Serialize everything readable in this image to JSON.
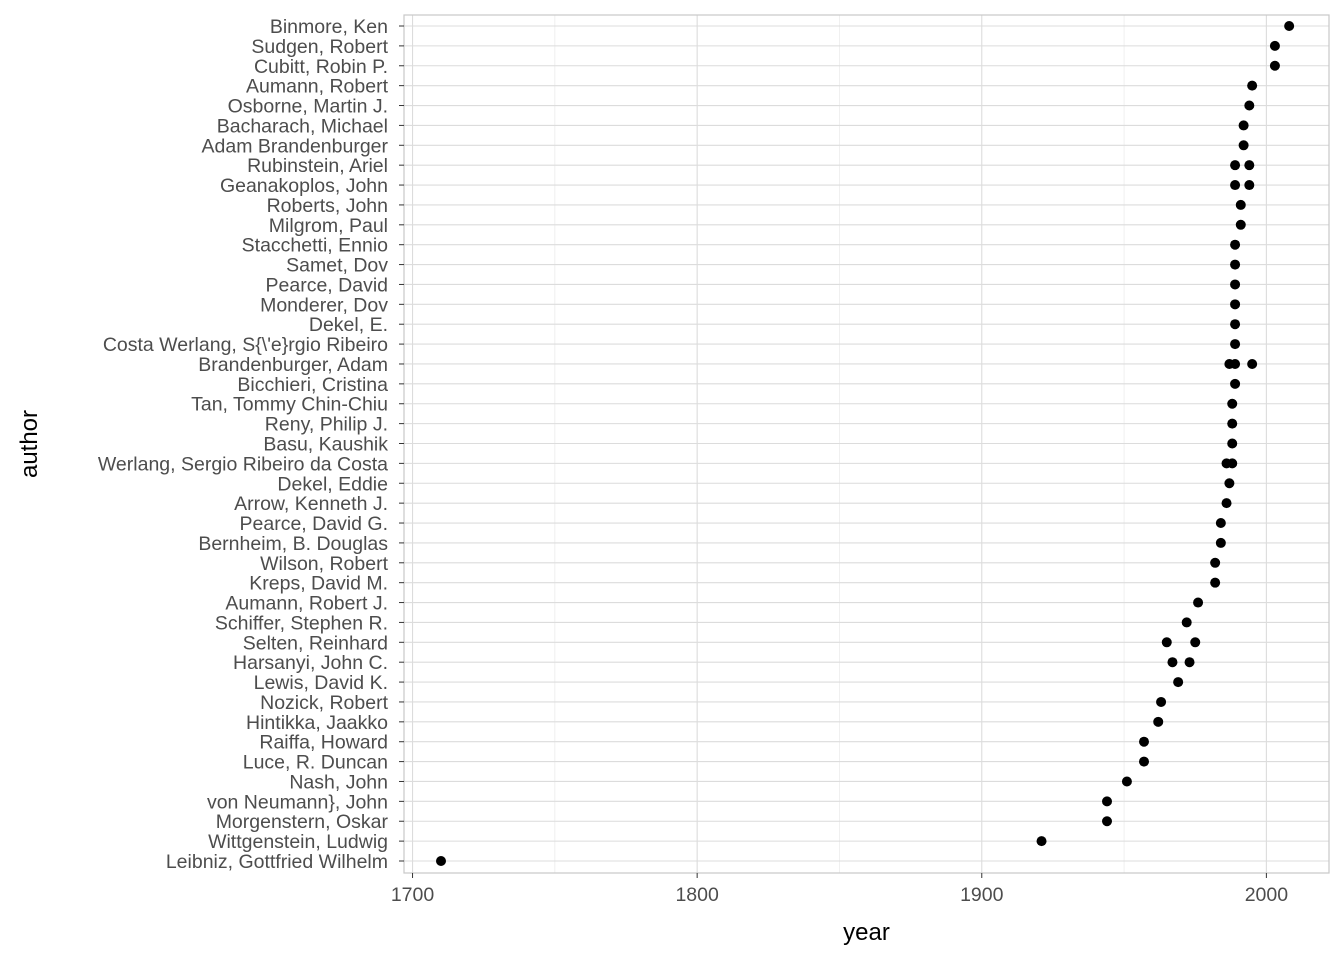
{
  "chart_data": {
    "type": "scatter",
    "title": "",
    "xlabel": "year",
    "ylabel": "author",
    "xlim": [
      1697,
      2022
    ],
    "x_ticks": [
      1700,
      1800,
      1900,
      2000
    ],
    "x_tick_labels": [
      "1700",
      "1800",
      "1900",
      "2000"
    ],
    "grid": true,
    "legend": "none",
    "point_color": "#000000",
    "grid_color": "#dcdcdc",
    "panel_border_color": "#c8c8c8",
    "categories": [
      "Leibniz, Gottfried Wilhelm",
      "Wittgenstein, Ludwig",
      "Morgenstern, Oskar",
      "von Neumann}, John",
      "Nash, John",
      "Luce, R. Duncan",
      "Raiffa, Howard",
      "Hintikka, Jaakko",
      "Nozick, Robert",
      "Lewis, David K.",
      "Harsanyi, John C.",
      "Selten, Reinhard",
      "Schiffer, Stephen R.",
      "Aumann, Robert J.",
      "Kreps, David M.",
      "Wilson, Robert",
      "Bernheim, B. Douglas",
      "Pearce, David G.",
      "Arrow, Kenneth J.",
      "Dekel, Eddie",
      "Werlang, Sergio Ribeiro da Costa",
      "Basu, Kaushik",
      "Reny, Philip J.",
      "Tan, Tommy Chin-Chiu",
      "Bicchieri, Cristina",
      "Brandenburger, Adam",
      "Costa Werlang, S{\\'e}rgio Ribeiro",
      "Dekel, E.",
      "Monderer, Dov",
      "Pearce, David",
      "Samet, Dov",
      "Stacchetti, Ennio",
      "Milgrom, Paul",
      "Roberts, John",
      "Geanakoplos, John",
      "Rubinstein, Ariel",
      "Adam Brandenburger",
      "Bacharach, Michael",
      "Osborne, Martin J.",
      "Aumann, Robert",
      "Cubitt, Robin P.",
      "Sudgen, Robert",
      "Binmore, Ken"
    ],
    "points": [
      {
        "author": "Leibniz, Gottfried Wilhelm",
        "year": 1710
      },
      {
        "author": "Wittgenstein, Ludwig",
        "year": 1921
      },
      {
        "author": "Morgenstern, Oskar",
        "year": 1944
      },
      {
        "author": "von Neumann}, John",
        "year": 1944
      },
      {
        "author": "Nash, John",
        "year": 1951
      },
      {
        "author": "Luce, R. Duncan",
        "year": 1957
      },
      {
        "author": "Raiffa, Howard",
        "year": 1957
      },
      {
        "author": "Hintikka, Jaakko",
        "year": 1962
      },
      {
        "author": "Nozick, Robert",
        "year": 1963
      },
      {
        "author": "Lewis, David K.",
        "year": 1969
      },
      {
        "author": "Harsanyi, John C.",
        "year": 1967
      },
      {
        "author": "Harsanyi, John C.",
        "year": 1973
      },
      {
        "author": "Selten, Reinhard",
        "year": 1965
      },
      {
        "author": "Selten, Reinhard",
        "year": 1975
      },
      {
        "author": "Schiffer, Stephen R.",
        "year": 1972
      },
      {
        "author": "Aumann, Robert J.",
        "year": 1976
      },
      {
        "author": "Kreps, David M.",
        "year": 1982
      },
      {
        "author": "Wilson, Robert",
        "year": 1982
      },
      {
        "author": "Bernheim, B. Douglas",
        "year": 1984
      },
      {
        "author": "Pearce, David G.",
        "year": 1984
      },
      {
        "author": "Arrow, Kenneth J.",
        "year": 1986
      },
      {
        "author": "Dekel, Eddie",
        "year": 1987
      },
      {
        "author": "Werlang, Sergio Ribeiro da Costa",
        "year": 1986
      },
      {
        "author": "Werlang, Sergio Ribeiro da Costa",
        "year": 1988
      },
      {
        "author": "Basu, Kaushik",
        "year": 1988
      },
      {
        "author": "Reny, Philip J.",
        "year": 1988
      },
      {
        "author": "Tan, Tommy Chin-Chiu",
        "year": 1988
      },
      {
        "author": "Bicchieri, Cristina",
        "year": 1989
      },
      {
        "author": "Brandenburger, Adam",
        "year": 1987
      },
      {
        "author": "Brandenburger, Adam",
        "year": 1989
      },
      {
        "author": "Brandenburger, Adam",
        "year": 1995
      },
      {
        "author": "Costa Werlang, S{\\'e}rgio Ribeiro",
        "year": 1989
      },
      {
        "author": "Dekel, E.",
        "year": 1989
      },
      {
        "author": "Monderer, Dov",
        "year": 1989
      },
      {
        "author": "Pearce, David",
        "year": 1989
      },
      {
        "author": "Samet, Dov",
        "year": 1989
      },
      {
        "author": "Stacchetti, Ennio",
        "year": 1989
      },
      {
        "author": "Milgrom, Paul",
        "year": 1991
      },
      {
        "author": "Roberts, John",
        "year": 1991
      },
      {
        "author": "Geanakoplos, John",
        "year": 1989
      },
      {
        "author": "Geanakoplos, John",
        "year": 1994
      },
      {
        "author": "Rubinstein, Ariel",
        "year": 1989
      },
      {
        "author": "Rubinstein, Ariel",
        "year": 1994
      },
      {
        "author": "Adam Brandenburger",
        "year": 1992
      },
      {
        "author": "Bacharach, Michael",
        "year": 1992
      },
      {
        "author": "Osborne, Martin J.",
        "year": 1994
      },
      {
        "author": "Aumann, Robert",
        "year": 1995
      },
      {
        "author": "Cubitt, Robin P.",
        "year": 2003
      },
      {
        "author": "Sudgen, Robert",
        "year": 2003
      },
      {
        "author": "Binmore, Ken",
        "year": 2008
      }
    ]
  }
}
